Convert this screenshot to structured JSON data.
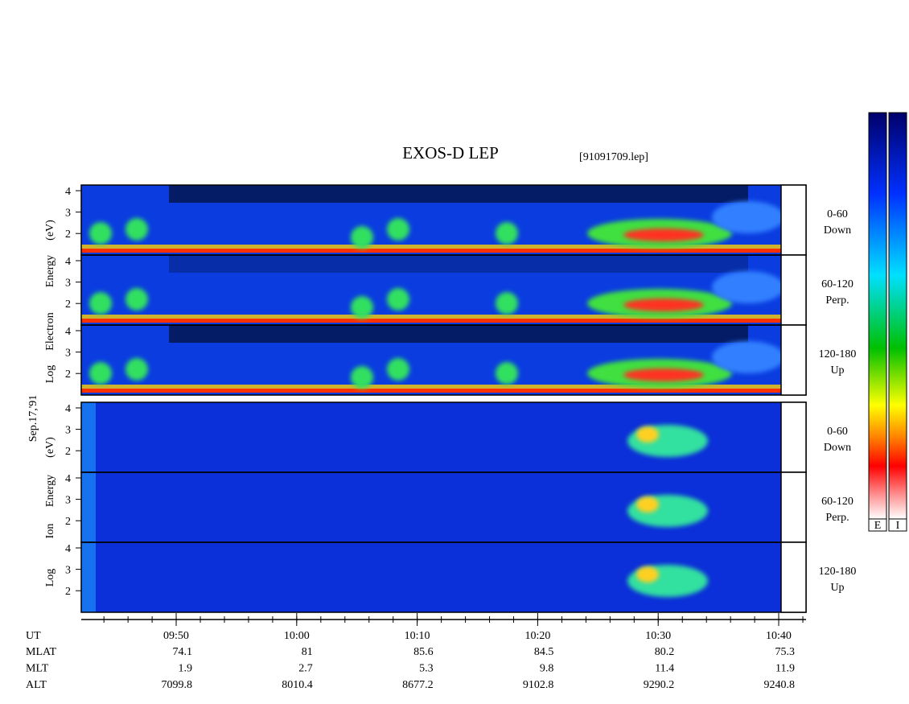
{
  "header": {
    "title": "EXOS-D LEP",
    "file": "[91091709.lep]"
  },
  "date": "Sep.17,'91",
  "groups": [
    {
      "axis_label": [
        "Log",
        "Electron",
        "Energy",
        "(eV)"
      ],
      "panels": [
        {
          "label": [
            "0-60",
            "Down"
          ],
          "yticks": [
            4,
            3,
            2
          ]
        },
        {
          "label": [
            "60-120",
            "Perp."
          ],
          "yticks": [
            4,
            3,
            2
          ]
        },
        {
          "label": [
            "120-180",
            "Up"
          ],
          "yticks": [
            4,
            3,
            2
          ]
        }
      ]
    },
    {
      "axis_label": [
        "Log",
        "Ion",
        "Energy",
        "(eV)"
      ],
      "panels": [
        {
          "label": [
            "0-60",
            "Down"
          ],
          "yticks": [
            4,
            3,
            2
          ]
        },
        {
          "label": [
            "60-120",
            "Perp."
          ],
          "yticks": [
            4,
            3,
            2
          ]
        },
        {
          "label": [
            "120-180",
            "Up"
          ],
          "yticks": [
            4,
            3,
            2
          ]
        }
      ]
    }
  ],
  "time_axis": {
    "name": "UT",
    "ticks": [
      "09:50",
      "10:00",
      "10:10",
      "10:20",
      "10:30",
      "10:40"
    ]
  },
  "ephemeris": [
    {
      "name": "MLAT",
      "values": [
        74.1,
        81.0,
        85.6,
        84.5,
        80.2,
        75.3
      ]
    },
    {
      "name": "MLT",
      "values": [
        1.9,
        2.7,
        5.3,
        9.8,
        11.4,
        11.9
      ]
    },
    {
      "name": "ALT",
      "values": [
        7099.8,
        8010.4,
        8677.2,
        9102.8,
        9290.2,
        9240.8
      ]
    }
  ],
  "colorbars": [
    "E",
    "I"
  ]
}
